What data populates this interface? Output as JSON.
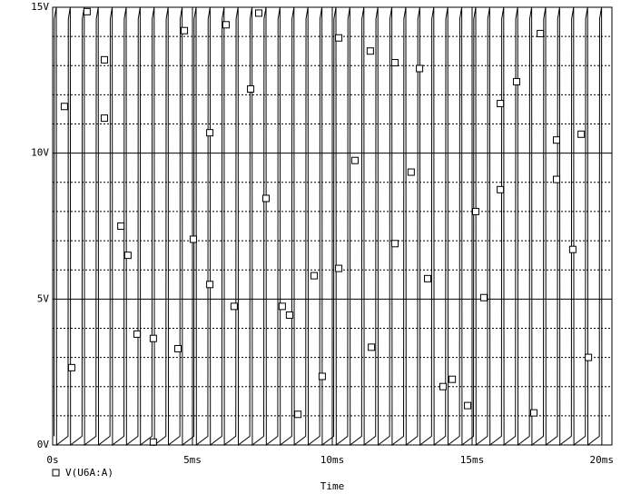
{
  "chart_data": {
    "type": "line",
    "x_label": "Time",
    "xlim": [
      0,
      20
    ],
    "ylim": [
      0,
      15
    ],
    "xticks": [
      {
        "value": 0,
        "label": "0s"
      },
      {
        "value": 5,
        "label": "5ms"
      },
      {
        "value": 10,
        "label": "10ms"
      },
      {
        "value": 15,
        "label": "15ms"
      },
      {
        "value": 20,
        "label": "20ms"
      }
    ],
    "yticks": [
      {
        "value": 0,
        "label": "0V"
      },
      {
        "value": 5,
        "label": "5V"
      },
      {
        "value": 10,
        "label": "10V"
      },
      {
        "value": 15,
        "label": "15V"
      }
    ],
    "y_minor_ticks": [
      1,
      2,
      3,
      4,
      6,
      7,
      8,
      9,
      11,
      12,
      13,
      14
    ],
    "grid": true,
    "series": [
      {
        "name": "V(U6A:A)",
        "color": "#000000",
        "x": [
          0.05,
          0.06,
          0.13,
          0.14,
          0.55,
          0.56,
          0.63,
          0.64,
          1.05,
          1.06,
          1.13,
          1.14,
          1.55,
          1.56,
          1.63,
          1.64,
          2.05,
          2.06,
          2.13,
          2.14,
          2.55,
          2.56,
          2.63,
          2.64,
          3.05,
          3.06,
          3.13,
          3.14,
          3.55,
          3.56,
          3.63,
          3.64,
          4.05,
          4.06,
          4.13,
          4.14,
          4.55,
          4.56,
          4.63,
          4.64,
          5.05,
          5.06,
          5.13,
          5.14,
          5.55,
          5.56,
          5.63,
          5.64,
          6.05,
          6.06,
          6.13,
          6.14,
          6.55,
          6.56,
          6.63,
          6.64,
          7.05,
          7.06,
          7.13,
          7.14,
          7.55,
          7.56,
          7.63,
          7.64,
          8.05,
          8.06,
          8.13,
          8.14,
          8.55,
          8.56,
          8.63,
          8.64,
          9.05,
          9.06,
          9.13,
          9.14,
          9.55,
          9.56,
          9.63,
          9.64,
          10.05,
          10.06,
          10.13,
          10.14,
          10.55,
          10.56,
          10.63,
          10.64,
          11.05,
          11.06,
          11.13,
          11.14,
          11.55,
          11.56,
          11.63,
          11.64,
          12.05,
          12.06,
          12.13,
          12.14,
          12.55,
          12.56,
          12.63,
          12.64,
          13.05,
          13.06,
          13.13,
          13.14,
          13.55,
          13.56,
          13.63,
          13.64,
          14.05,
          14.06,
          14.13,
          14.14,
          14.55,
          14.56,
          14.63,
          14.64,
          15.05,
          15.06,
          15.13,
          15.14,
          15.55,
          15.56,
          15.63,
          15.64,
          16.05,
          16.06,
          16.13,
          16.14,
          16.55,
          16.56,
          16.63,
          16.64,
          17.05,
          17.06,
          17.13,
          17.14,
          17.55,
          17.56,
          17.63,
          17.64,
          18.05,
          18.06,
          18.13,
          18.14,
          18.55,
          18.56,
          18.63,
          18.64,
          19.05,
          19.06,
          19.13,
          19.14,
          19.55,
          19.56,
          19.63,
          19.64
        ],
        "values": [
          0.3,
          14.6,
          15,
          0,
          0.3,
          14.6,
          15,
          0,
          0.3,
          14.6,
          15,
          0,
          0.3,
          14.6,
          15,
          0,
          0.3,
          14.6,
          15,
          0,
          0.3,
          14.6,
          15,
          0,
          0.3,
          14.6,
          15,
          0,
          0.3,
          14.6,
          15,
          0,
          0.3,
          14.6,
          15,
          0,
          0.3,
          14.6,
          15,
          0,
          0.3,
          14.6,
          15,
          0,
          0.3,
          14.6,
          15,
          0,
          0.3,
          14.6,
          15,
          0,
          0.3,
          14.6,
          15,
          0,
          0.3,
          14.6,
          15,
          0,
          0.3,
          14.6,
          15,
          0,
          0.3,
          14.6,
          15,
          0,
          0.3,
          14.6,
          15,
          0,
          0.3,
          14.6,
          15,
          0,
          0.3,
          14.6,
          15,
          0,
          0.3,
          14.6,
          15,
          0,
          0.3,
          14.6,
          15,
          0,
          0.3,
          14.6,
          15,
          0,
          0.3,
          14.6,
          15,
          0,
          0.3,
          14.6,
          15,
          0,
          0.3,
          14.6,
          15,
          0,
          0.3,
          14.6,
          15,
          0,
          0.3,
          14.6,
          15,
          0,
          0.3,
          14.6,
          15,
          0,
          0.3,
          14.6,
          15,
          0,
          0.3,
          14.6,
          15,
          0,
          0.3,
          14.6,
          15,
          0,
          0.3,
          14.6,
          15,
          0,
          0.3,
          14.6,
          15,
          0,
          0.3,
          14.6,
          15,
          0,
          0.3,
          14.6,
          15,
          0,
          0.3,
          14.6,
          15,
          0,
          0.3,
          14.6,
          15,
          0,
          0.3,
          14.6,
          15,
          0,
          0.3,
          14.6,
          15,
          0
        ],
        "marker_x": [
          0.42,
          0.68,
          1.23,
          1.85,
          1.85,
          2.44,
          2.69,
          3.02,
          3.6,
          3.6,
          4.48,
          4.71,
          5.03,
          5.62,
          5.62,
          6.2,
          6.49,
          7.08,
          7.37,
          7.63,
          8.21,
          8.47,
          8.77,
          9.35,
          9.64,
          10.23,
          10.23,
          10.81,
          11.36,
          11.4,
          12.24,
          12.24,
          12.82,
          13.12,
          13.41,
          13.96,
          14.29,
          14.84,
          15.13,
          15.42,
          16.01,
          16.01,
          16.59,
          17.21,
          17.44,
          18.02,
          18.02,
          18.6,
          18.9,
          19.16
        ],
        "marker_values": [
          11.6,
          2.65,
          14.85,
          13.2,
          11.2,
          7.5,
          6.5,
          3.8,
          3.65,
          0.1,
          3.3,
          14.2,
          7.05,
          5.5,
          10.7,
          14.4,
          4.75,
          12.2,
          14.8,
          8.45,
          4.75,
          4.45,
          1.05,
          5.8,
          2.35,
          13.95,
          6.05,
          9.75,
          13.5,
          3.35,
          13.1,
          6.9,
          9.35,
          12.9,
          5.7,
          2.0,
          2.25,
          1.35,
          8.0,
          5.05,
          8.75,
          11.7,
          12.45,
          1.1,
          14.1,
          10.45,
          9.1,
          6.7,
          10.65,
          3.0
        ]
      }
    ]
  }
}
